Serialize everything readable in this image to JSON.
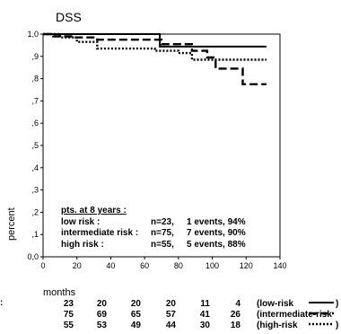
{
  "chart_data": {
    "type": "line",
    "title": "DSS",
    "xlabel": "months",
    "ylabel": "percent",
    "xlim": [
      0,
      140
    ],
    "ylim": [
      0,
      1.0
    ],
    "x_ticks": [
      "0",
      "20",
      "40",
      "60",
      "80",
      "100",
      "120",
      "140"
    ],
    "y_ticks": [
      "0,0",
      ",1",
      ",2",
      ",3",
      ",4",
      ",5",
      ",6",
      ",7",
      ",8",
      ",9",
      "1,0"
    ],
    "grid": false,
    "series": [
      {
        "style": "solid",
        "points": [
          [
            0,
            1.0
          ],
          [
            69,
            1.0
          ],
          [
            69,
            0.944
          ],
          [
            132,
            0.944
          ]
        ]
      },
      {
        "style": "dashed",
        "points": [
          [
            0,
            1.0
          ],
          [
            6,
            1.0
          ],
          [
            6,
            0.99
          ],
          [
            18,
            0.99
          ],
          [
            18,
            0.985
          ],
          [
            32,
            0.985
          ],
          [
            32,
            0.975
          ],
          [
            70,
            0.975
          ],
          [
            70,
            0.955
          ],
          [
            88,
            0.955
          ],
          [
            88,
            0.925
          ],
          [
            97,
            0.925
          ],
          [
            97,
            0.895
          ],
          [
            102,
            0.895
          ],
          [
            102,
            0.845
          ],
          [
            118,
            0.845
          ],
          [
            118,
            0.775
          ],
          [
            132,
            0.775
          ]
        ]
      },
      {
        "style": "dotted",
        "points": [
          [
            0,
            1.0
          ],
          [
            10,
            1.0
          ],
          [
            10,
            0.985
          ],
          [
            20,
            0.985
          ],
          [
            20,
            0.965
          ],
          [
            32,
            0.965
          ],
          [
            32,
            0.935
          ],
          [
            66,
            0.935
          ],
          [
            66,
            0.925
          ],
          [
            80,
            0.925
          ],
          [
            80,
            0.915
          ],
          [
            88,
            0.915
          ],
          [
            88,
            0.885
          ],
          [
            132,
            0.885
          ]
        ]
      }
    ],
    "annotation": {
      "heading": "pts. at 8 years :",
      "rows": [
        {
          "label": "low risk :",
          "n": "n=23,",
          "events": "1 events, 94%"
        },
        {
          "label": "intermediate risk :",
          "n": "n=75,",
          "events": "7 events, 90%"
        },
        {
          "label": "high risk :",
          "n": "n=55,",
          "events": "5 events, 88%"
        }
      ]
    },
    "risk_table": {
      "lead": ":",
      "rows": [
        {
          "values": [
            "23",
            "20",
            "20",
            "20",
            "11",
            "4"
          ],
          "label": "(low-risk",
          "style": "solid"
        },
        {
          "values": [
            "75",
            "69",
            "65",
            "57",
            "41",
            "26"
          ],
          "label": "(intermediate-risk",
          "style": "dashed"
        },
        {
          "values": [
            "55",
            "53",
            "49",
            "44",
            "30",
            "18"
          ],
          "label": "(high-risk",
          "style": "dotted"
        }
      ]
    }
  }
}
